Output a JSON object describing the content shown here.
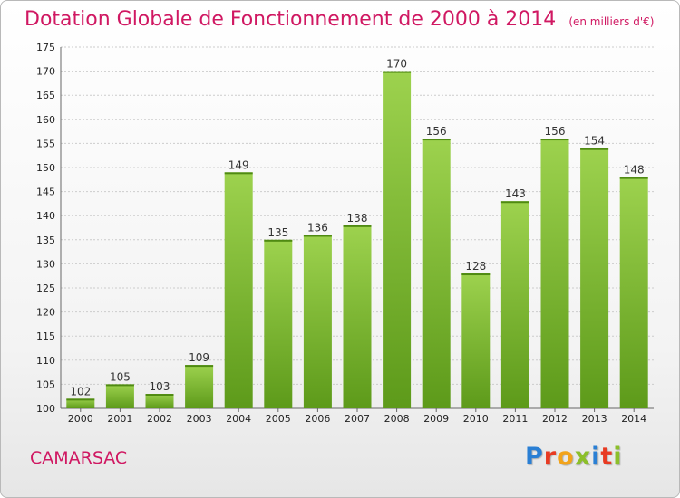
{
  "header": {
    "title": "Dotation Globale de Fonctionnement de 2000 à 2014",
    "unit": "(en milliers d'€)"
  },
  "footer": {
    "commune": "CAMARSAC",
    "logo": "Proxiti",
    "logo_colors": [
      "#2a7fd4",
      "#e83b23",
      "#f2a31b",
      "#8cbf2a",
      "#2a7fd4",
      "#e83b23",
      "#8cbf2a"
    ]
  },
  "colors": {
    "bar_top": "#9dd24e",
    "bar_bottom": "#5d9a1a",
    "grid": "#cccccc",
    "title": "#d01862"
  },
  "chart_data": {
    "type": "bar",
    "title": "Dotation Globale de Fonctionnement de 2000 à 2014",
    "subtitle": "(en milliers d'€)",
    "xlabel": "",
    "ylabel": "",
    "categories": [
      "2000",
      "2001",
      "2002",
      "2003",
      "2004",
      "2005",
      "2006",
      "2007",
      "2008",
      "2009",
      "2010",
      "2011",
      "2012",
      "2013",
      "2014"
    ],
    "values": [
      102,
      105,
      103,
      109,
      149,
      135,
      136,
      138,
      170,
      156,
      128,
      143,
      156,
      154,
      148
    ],
    "ylim": [
      100,
      175
    ],
    "yticks": [
      100,
      105,
      110,
      115,
      120,
      125,
      130,
      135,
      140,
      145,
      150,
      155,
      160,
      165,
      170,
      175
    ],
    "grid": true,
    "legend": "none"
  }
}
